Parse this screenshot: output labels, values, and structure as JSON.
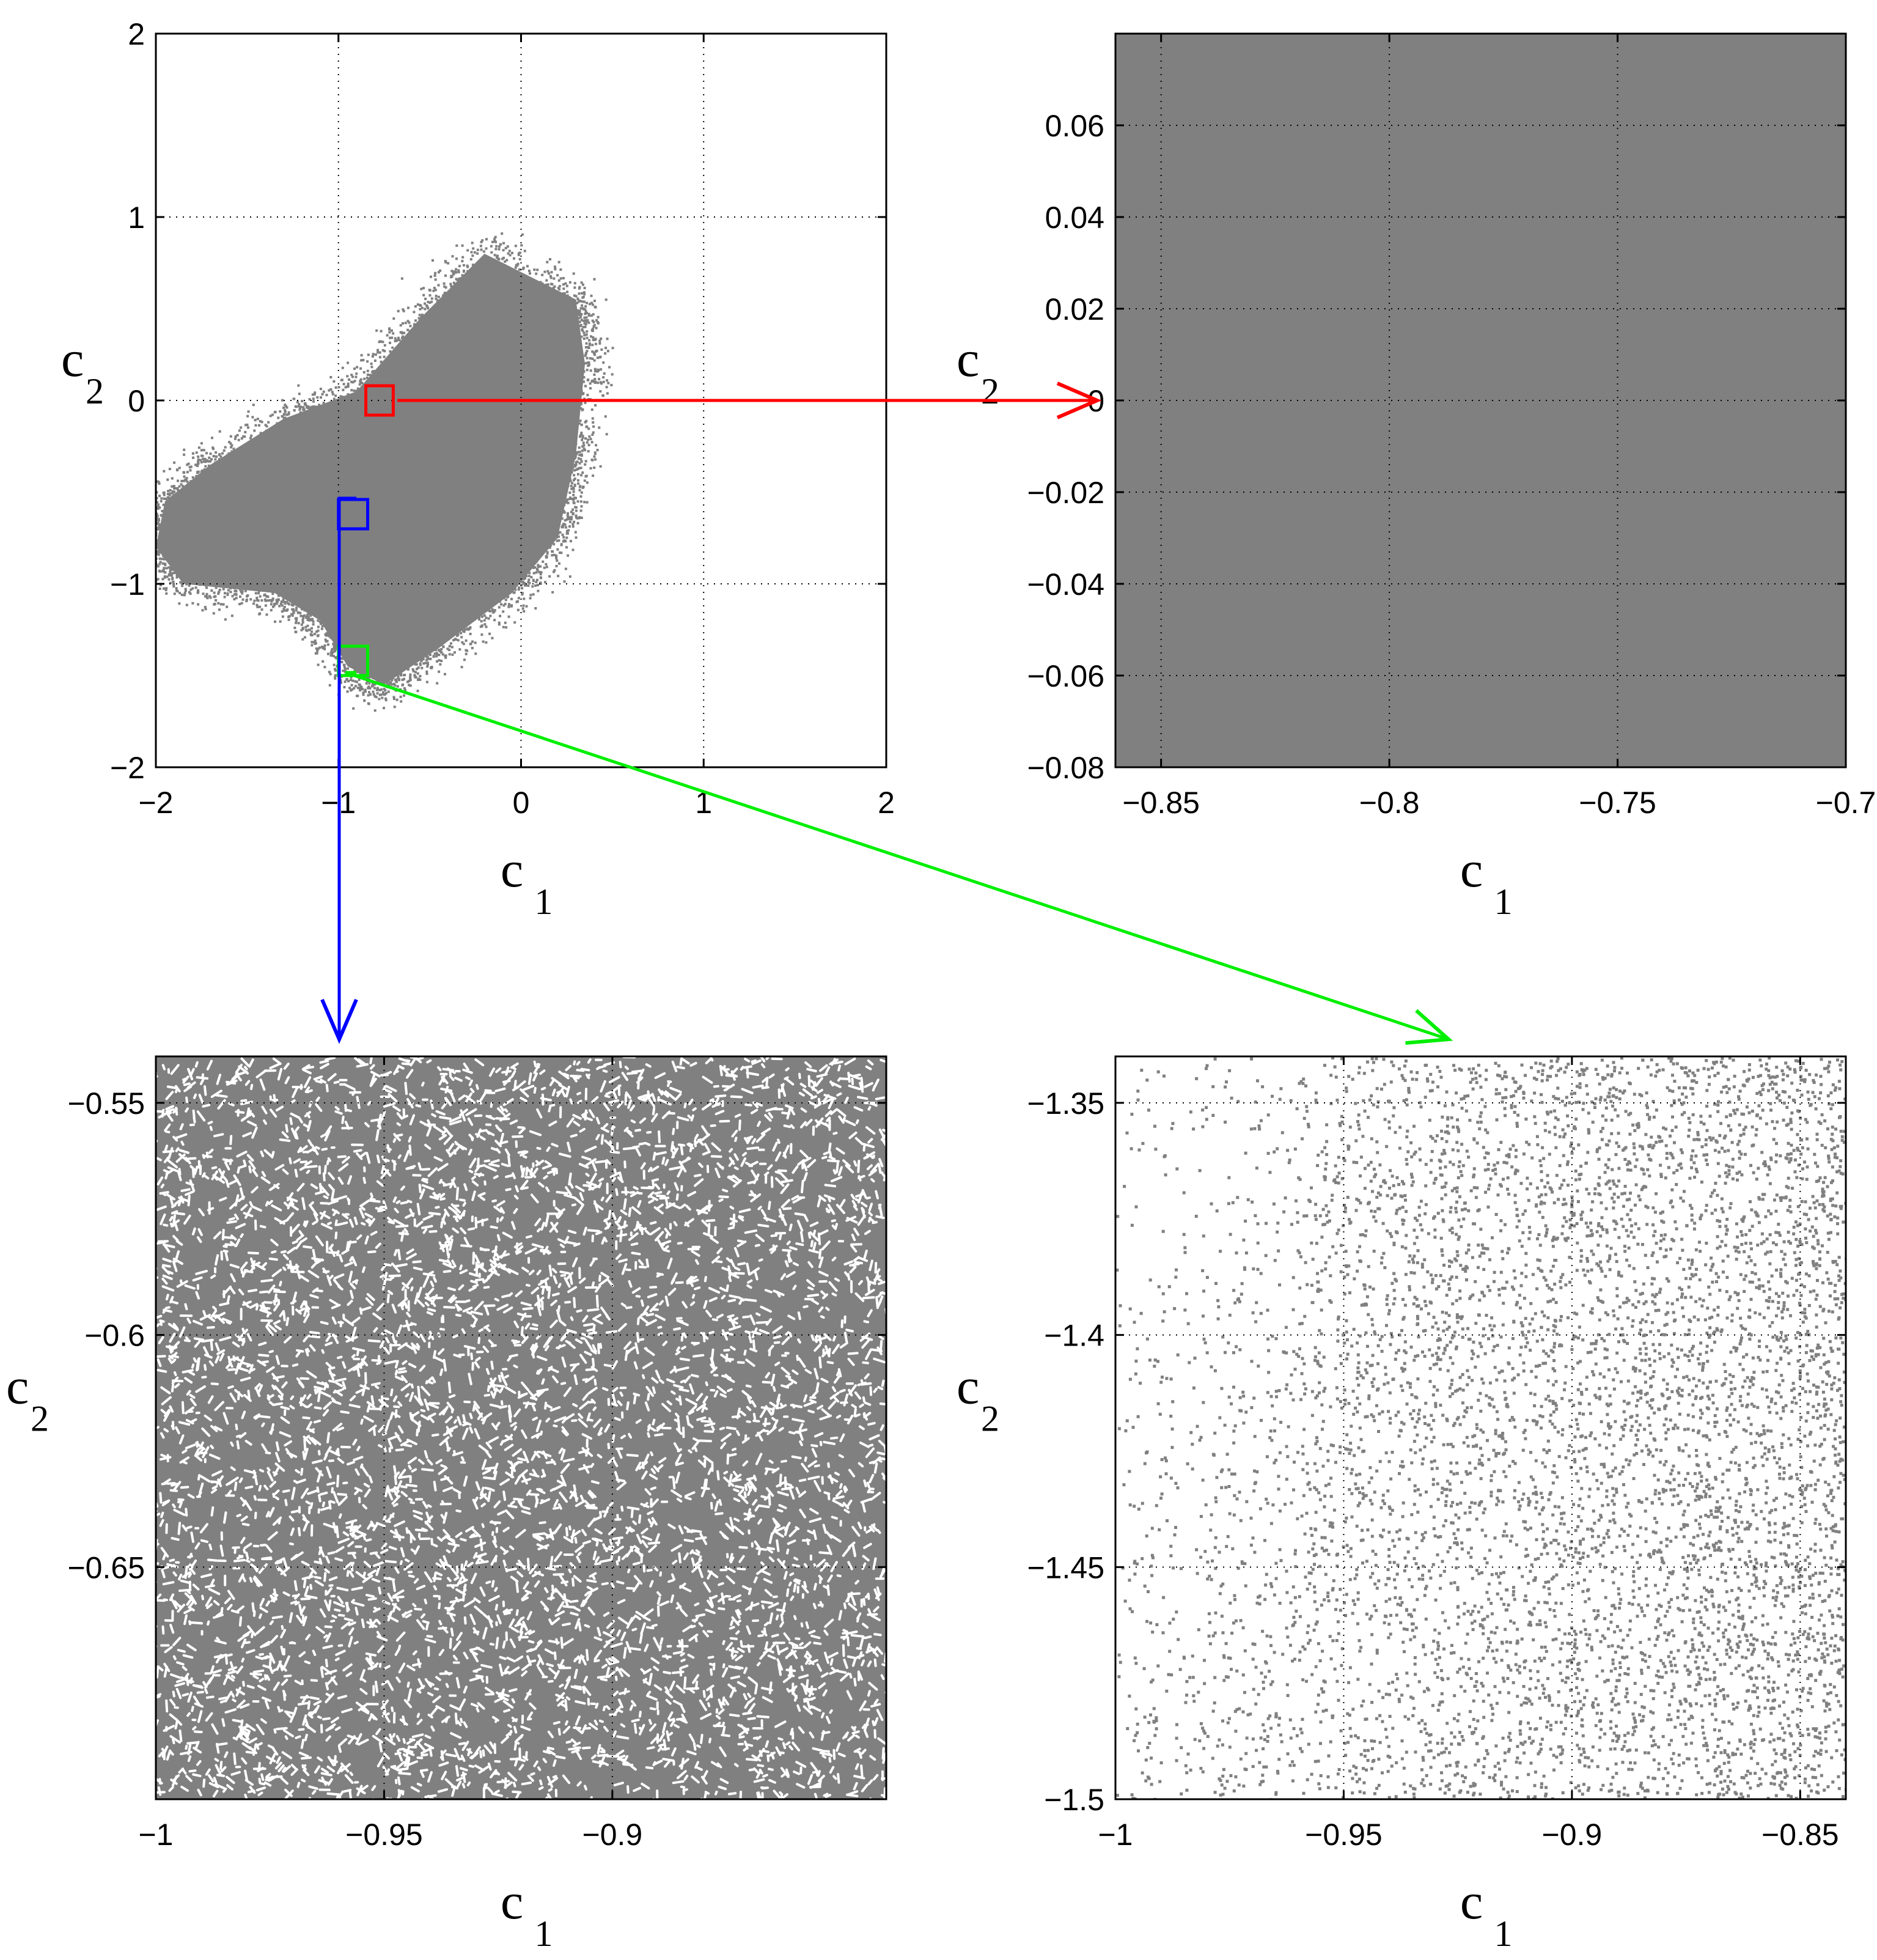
{
  "figure": {
    "colors": {
      "points": "#808080",
      "red": "#ff0000",
      "blue": "#0000ff",
      "green": "#00ee00",
      "axis": "#000000"
    },
    "panels_note_order": [
      "overview",
      "zoom_red",
      "zoom_blue",
      "zoom_green"
    ]
  },
  "chart_data": [
    {
      "id": "overview",
      "type": "scatter",
      "xlabel": "c",
      "xlabel_sub": "1",
      "ylabel": "c",
      "ylabel_sub": "2",
      "xlim": [
        -2,
        2
      ],
      "ylim": [
        -2,
        2
      ],
      "xticks": [
        -2,
        -1,
        0,
        1,
        2
      ],
      "yticks": [
        -2,
        -1,
        0,
        1,
        2
      ],
      "xtick_labels": [
        "−2",
        "−1",
        "0",
        "1",
        "2"
      ],
      "ytick_labels": [
        "−2",
        "−1",
        "0",
        "1",
        "2"
      ],
      "grid": true,
      "point_cloud": {
        "description_center": [
          -0.6,
          -0.4
        ],
        "c1_range": [
          -2.0,
          0.4
        ],
        "c2_range": [
          -1.7,
          0.85
        ],
        "density": "dense"
      },
      "highlight_boxes": [
        {
          "color": "red",
          "c1_range": [
            -0.85,
            -0.7
          ],
          "c2_range": [
            -0.08,
            0.08
          ]
        },
        {
          "color": "blue",
          "c1_range": [
            -1.0,
            -0.84
          ],
          "c2_range": [
            -0.7,
            -0.54
          ]
        },
        {
          "color": "green",
          "c1_range": [
            -1.0,
            -0.84
          ],
          "c2_range": [
            -1.5,
            -1.34
          ]
        }
      ]
    },
    {
      "id": "zoom_red",
      "type": "scatter",
      "xlabel": "c",
      "xlabel_sub": "1",
      "ylabel": "c",
      "ylabel_sub": "2",
      "xlim": [
        -0.86,
        -0.7
      ],
      "ylim": [
        -0.08,
        0.08
      ],
      "xticks": [
        -0.85,
        -0.8,
        -0.75,
        -0.7
      ],
      "yticks": [
        -0.08,
        -0.06,
        -0.04,
        -0.02,
        0,
        0.02,
        0.04,
        0.06
      ],
      "xtick_labels": [
        "−0.85",
        "−0.8",
        "−0.75",
        "−0.7"
      ],
      "ytick_labels": [
        "−0.08",
        "−0.06",
        "−0.04",
        "−0.02",
        "0",
        "0.02",
        "0.04",
        "0.06"
      ],
      "grid": true,
      "fill": "solid"
    },
    {
      "id": "zoom_blue",
      "type": "scatter",
      "xlabel": "c",
      "xlabel_sub": "1",
      "ylabel": "c",
      "ylabel_sub": "2",
      "xlim": [
        -1.0,
        -0.84
      ],
      "ylim": [
        -0.7,
        -0.54
      ],
      "xticks": [
        -1,
        -0.95,
        -0.9
      ],
      "yticks": [
        -0.65,
        -0.6,
        -0.55
      ],
      "xtick_labels": [
        "−1",
        "−0.95",
        "−0.9"
      ],
      "ytick_labels": [
        "−0.65",
        "−0.6",
        "−0.55"
      ],
      "grid": true,
      "fill": "dense-with-gaps"
    },
    {
      "id": "zoom_green",
      "type": "scatter",
      "xlabel": "c",
      "xlabel_sub": "1",
      "ylabel": "c",
      "ylabel_sub": "2",
      "xlim": [
        -1.0,
        -0.84
      ],
      "ylim": [
        -1.5,
        -1.34
      ],
      "xticks": [
        -1,
        -0.95,
        -0.9,
        -0.85
      ],
      "yticks": [
        -1.5,
        -1.45,
        -1.4,
        -1.35
      ],
      "xtick_labels": [
        "−1",
        "−0.95",
        "−0.9",
        "−0.85"
      ],
      "ytick_labels": [
        "−1.5",
        "−1.45",
        "−1.4",
        "−1.35"
      ],
      "grid": true,
      "fill": "sparse-gradient"
    }
  ]
}
